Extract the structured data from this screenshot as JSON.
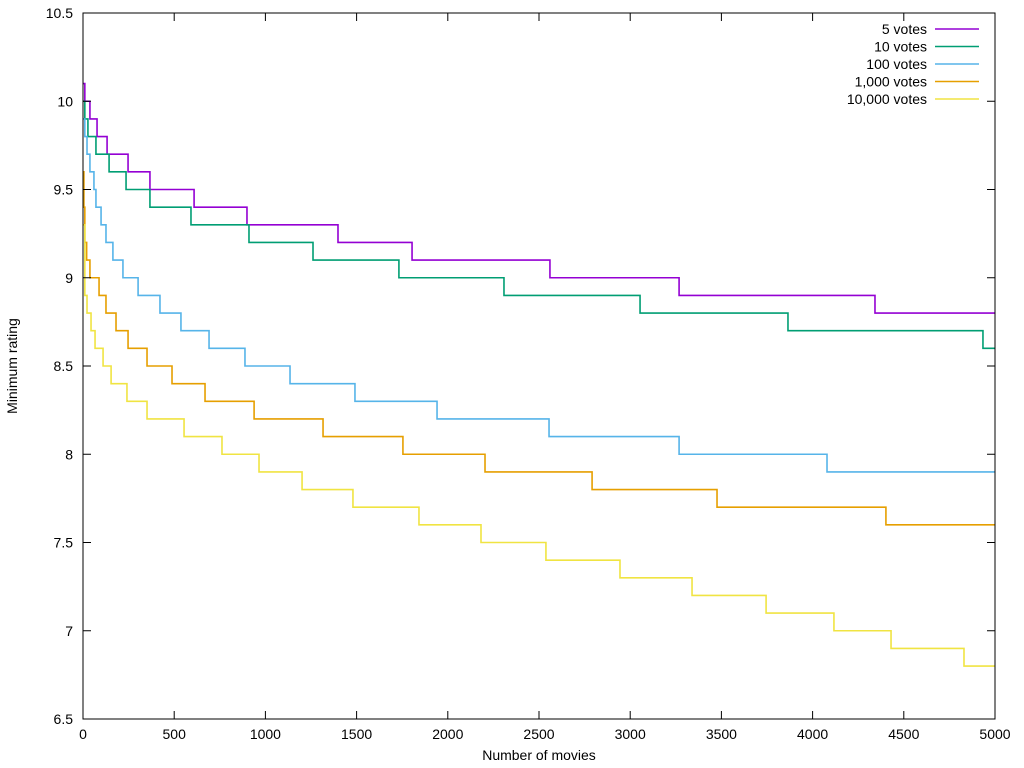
{
  "chart_data": {
    "type": "line",
    "step": "after",
    "title": "",
    "xlabel": "Number of movies",
    "ylabel": "Minimum rating",
    "xlim": [
      0,
      5000
    ],
    "ylim": [
      6.5,
      10.5
    ],
    "xticks": [
      0,
      500,
      1000,
      1500,
      2000,
      2500,
      3000,
      3500,
      4000,
      4500,
      5000
    ],
    "yticks": [
      6.5,
      7,
      7.5,
      8,
      8.5,
      9,
      9.5,
      10,
      10.5
    ],
    "xtick_labels": [
      "0",
      "500",
      "1000",
      "1500",
      "2000",
      "2500",
      "3000",
      "3500",
      "4000",
      "4500",
      "5000"
    ],
    "ytick_labels": [
      "6.5",
      "7",
      "7.5",
      "8",
      "8.5",
      "9",
      "9.5",
      "10",
      "10.5"
    ],
    "grid": false,
    "legend_position": "top-right",
    "series": [
      {
        "name": "5 votes",
        "color": "#9400d3",
        "steps": [
          [
            0,
            10.1
          ],
          [
            10,
            10.0
          ],
          [
            38,
            9.9
          ],
          [
            77,
            9.8
          ],
          [
            132,
            9.7
          ],
          [
            247,
            9.6
          ],
          [
            367,
            9.5
          ],
          [
            609,
            9.4
          ],
          [
            899,
            9.3
          ],
          [
            1398,
            9.2
          ],
          [
            1804,
            9.1
          ],
          [
            2560,
            9.0
          ],
          [
            3268,
            8.9
          ],
          [
            4342,
            8.8
          ],
          [
            5000,
            8.8
          ]
        ]
      },
      {
        "name": "10 votes",
        "color": "#009e73",
        "steps": [
          [
            0,
            10.0
          ],
          [
            10,
            9.9
          ],
          [
            27,
            9.8
          ],
          [
            71,
            9.7
          ],
          [
            143,
            9.6
          ],
          [
            236,
            9.5
          ],
          [
            367,
            9.4
          ],
          [
            592,
            9.3
          ],
          [
            910,
            9.2
          ],
          [
            1261,
            9.1
          ],
          [
            1732,
            9.0
          ],
          [
            2308,
            8.9
          ],
          [
            3054,
            8.8
          ],
          [
            3865,
            8.7
          ],
          [
            4934,
            8.6
          ],
          [
            5000,
            8.6
          ]
        ]
      },
      {
        "name": "100 votes",
        "color": "#56b4e9",
        "steps": [
          [
            0,
            9.9
          ],
          [
            10,
            9.8
          ],
          [
            22,
            9.7
          ],
          [
            38,
            9.6
          ],
          [
            60,
            9.5
          ],
          [
            71,
            9.4
          ],
          [
            99,
            9.3
          ],
          [
            126,
            9.2
          ],
          [
            164,
            9.1
          ],
          [
            219,
            9.0
          ],
          [
            302,
            8.9
          ],
          [
            422,
            8.8
          ],
          [
            537,
            8.7
          ],
          [
            691,
            8.6
          ],
          [
            888,
            8.5
          ],
          [
            1135,
            8.4
          ],
          [
            1491,
            8.3
          ],
          [
            1941,
            8.2
          ],
          [
            2555,
            8.1
          ],
          [
            3268,
            8.0
          ],
          [
            4079,
            7.9
          ],
          [
            5000,
            7.9
          ]
        ]
      },
      {
        "name": "1,000 votes",
        "color": "#e69f00",
        "steps": [
          [
            0,
            9.6
          ],
          [
            5,
            9.4
          ],
          [
            10,
            9.2
          ],
          [
            20,
            9.1
          ],
          [
            38,
            9.0
          ],
          [
            88,
            8.9
          ],
          [
            126,
            8.8
          ],
          [
            181,
            8.7
          ],
          [
            247,
            8.6
          ],
          [
            351,
            8.5
          ],
          [
            488,
            8.4
          ],
          [
            669,
            8.3
          ],
          [
            938,
            8.2
          ],
          [
            1316,
            8.1
          ],
          [
            1754,
            8.0
          ],
          [
            2204,
            7.9
          ],
          [
            2791,
            7.8
          ],
          [
            3476,
            7.7
          ],
          [
            4402,
            7.6
          ],
          [
            5000,
            7.6
          ]
        ]
      },
      {
        "name": "10,000 votes",
        "color": "#f0e442",
        "steps": [
          [
            0,
            9.3
          ],
          [
            10,
            8.9
          ],
          [
            22,
            8.8
          ],
          [
            44,
            8.7
          ],
          [
            66,
            8.6
          ],
          [
            110,
            8.5
          ],
          [
            154,
            8.4
          ],
          [
            241,
            8.3
          ],
          [
            351,
            8.2
          ],
          [
            554,
            8.1
          ],
          [
            762,
            8.0
          ],
          [
            965,
            7.9
          ],
          [
            1201,
            7.8
          ],
          [
            1480,
            7.7
          ],
          [
            1842,
            7.6
          ],
          [
            2182,
            7.5
          ],
          [
            2538,
            7.4
          ],
          [
            2944,
            7.3
          ],
          [
            3339,
            7.2
          ],
          [
            3745,
            7.1
          ],
          [
            4117,
            7.0
          ],
          [
            4430,
            6.9
          ],
          [
            4830,
            6.8
          ],
          [
            5000,
            6.8
          ]
        ]
      }
    ]
  }
}
